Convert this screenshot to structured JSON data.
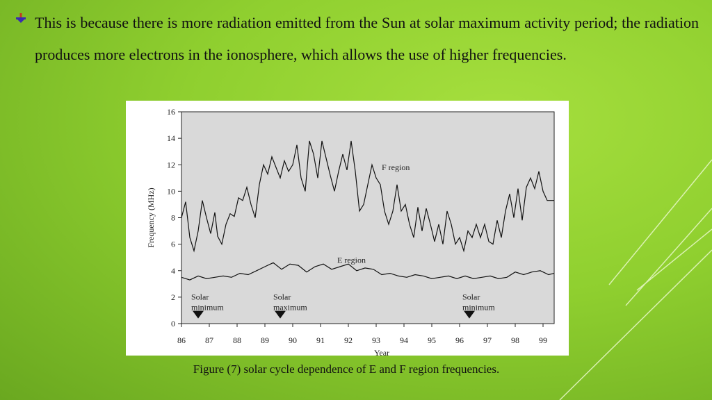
{
  "paragraph": "This is because there is more radiation emitted from the Sun at solar maximum activity period; the radiation produces more electrons in the ionosphere, which allows the use of higher frequencies.",
  "caption": "Figure (7) solar cycle dependence of E and F region frequencies.",
  "colors": {
    "background": "#8fcf2f",
    "plot_bg": "#d9d9d9",
    "line": "#111111"
  },
  "chart_data": {
    "type": "line",
    "ylabel": "Frequency (MHz)",
    "xlabel": "Year",
    "ylim": [
      0,
      16
    ],
    "xlim": [
      86,
      99.4
    ],
    "y_ticks": [
      "0",
      "2",
      "4",
      "6",
      "8",
      "10",
      "12",
      "14",
      "16"
    ],
    "x_ticks": [
      "86",
      "87",
      "88",
      "89",
      "90",
      "91",
      "92",
      "93",
      "94",
      "95",
      "96",
      "97",
      "98",
      "99"
    ],
    "series": [
      {
        "name": "F region",
        "label": "F region",
        "x": [
          86.0,
          86.15,
          86.3,
          86.45,
          86.6,
          86.75,
          86.9,
          87.05,
          87.2,
          87.3,
          87.45,
          87.6,
          87.75,
          87.9,
          88.05,
          88.2,
          88.35,
          88.5,
          88.65,
          88.8,
          88.95,
          89.1,
          89.25,
          89.4,
          89.55,
          89.7,
          89.85,
          90.0,
          90.15,
          90.3,
          90.45,
          90.6,
          90.75,
          90.9,
          91.05,
          91.2,
          91.35,
          91.5,
          91.65,
          91.8,
          91.95,
          92.1,
          92.25,
          92.4,
          92.55,
          92.7,
          92.85,
          93.0,
          93.15,
          93.3,
          93.45,
          93.6,
          93.75,
          93.9,
          94.05,
          94.2,
          94.35,
          94.5,
          94.65,
          94.8,
          94.95,
          95.1,
          95.25,
          95.4,
          95.55,
          95.7,
          95.85,
          96.0,
          96.15,
          96.3,
          96.45,
          96.6,
          96.75,
          96.9,
          97.05,
          97.2,
          97.35,
          97.5,
          97.65,
          97.8,
          97.95,
          98.1,
          98.25,
          98.4,
          98.55,
          98.7,
          98.85,
          99.0,
          99.15,
          99.4
        ],
        "values": [
          8.0,
          9.2,
          6.5,
          5.5,
          7.0,
          9.3,
          8.0,
          6.8,
          8.4,
          6.6,
          6.0,
          7.5,
          8.3,
          8.1,
          9.5,
          9.3,
          10.3,
          9.0,
          8.0,
          10.5,
          12.0,
          11.3,
          12.6,
          11.8,
          11.0,
          12.3,
          11.5,
          12.0,
          13.5,
          11.0,
          10.0,
          13.8,
          12.8,
          11.0,
          13.8,
          12.5,
          11.2,
          10.0,
          11.5,
          12.8,
          11.6,
          13.8,
          11.5,
          8.5,
          9.0,
          10.5,
          12.0,
          11.0,
          10.5,
          8.5,
          7.5,
          8.5,
          10.5,
          8.5,
          9.0,
          7.5,
          6.5,
          8.8,
          7.0,
          8.7,
          7.5,
          6.2,
          7.5,
          6.0,
          8.5,
          7.5,
          6.0,
          6.5,
          5.5,
          7.0,
          6.5,
          7.5,
          6.5,
          7.5,
          6.2,
          6.0,
          7.8,
          6.5,
          8.5,
          9.8,
          8.0,
          10.2,
          7.8,
          10.3,
          11.0,
          10.2,
          11.5,
          10.0,
          9.3,
          9.3
        ]
      },
      {
        "name": "E region",
        "label": "E region",
        "x": [
          86.0,
          86.3,
          86.6,
          86.9,
          87.2,
          87.5,
          87.8,
          88.1,
          88.4,
          88.7,
          89.0,
          89.3,
          89.6,
          89.9,
          90.2,
          90.5,
          90.8,
          91.1,
          91.4,
          91.7,
          92.0,
          92.3,
          92.6,
          92.9,
          93.2,
          93.5,
          93.8,
          94.1,
          94.4,
          94.7,
          95.0,
          95.3,
          95.6,
          95.9,
          96.2,
          96.5,
          96.8,
          97.1,
          97.4,
          97.7,
          98.0,
          98.3,
          98.6,
          98.9,
          99.2,
          99.4
        ],
        "values": [
          3.5,
          3.3,
          3.6,
          3.4,
          3.5,
          3.6,
          3.5,
          3.8,
          3.7,
          4.0,
          4.3,
          4.6,
          4.1,
          4.5,
          4.4,
          3.9,
          4.3,
          4.5,
          4.1,
          4.3,
          4.5,
          4.0,
          4.2,
          4.1,
          3.7,
          3.8,
          3.6,
          3.5,
          3.7,
          3.6,
          3.4,
          3.5,
          3.6,
          3.4,
          3.6,
          3.4,
          3.5,
          3.6,
          3.4,
          3.5,
          3.9,
          3.7,
          3.9,
          4.0,
          3.7,
          3.8
        ]
      }
    ],
    "annotations": [
      {
        "line1": "Solar",
        "line2": "minimum",
        "x": 86.6
      },
      {
        "line1": "Solar",
        "line2": "maximum",
        "x": 89.55
      },
      {
        "line1": "Solar",
        "line2": "minimum",
        "x": 96.35
      }
    ]
  }
}
